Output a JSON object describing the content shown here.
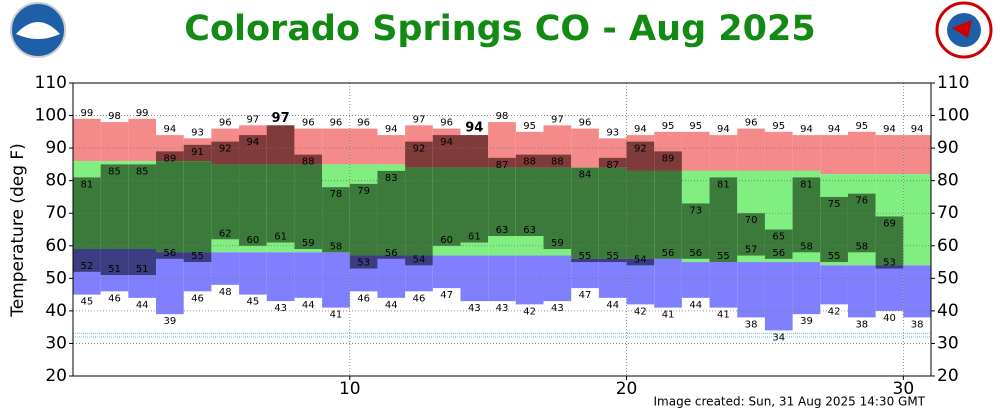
{
  "chart_data": {
    "type": "range",
    "title": "Colorado Springs CO - Aug 2025",
    "y_label": "Temperature (deg F)",
    "footer": "Image created: Sun, 31 Aug 2025 14:30 GMT",
    "x": [
      1,
      2,
      3,
      4,
      5,
      6,
      7,
      8,
      9,
      10,
      11,
      12,
      13,
      14,
      15,
      16,
      17,
      18,
      19,
      20,
      21,
      22,
      23,
      24,
      25,
      26,
      27,
      28,
      29,
      30,
      31
    ],
    "xlim": [
      0,
      31
    ],
    "xticks": [
      10,
      20,
      30
    ],
    "ylim": [
      20,
      110
    ],
    "yticks": [
      20,
      30,
      40,
      50,
      60,
      70,
      80,
      90,
      100,
      110
    ],
    "grid": true,
    "freezing": 32,
    "record_high": [
      99,
      98,
      99,
      94,
      93,
      96,
      97,
      97,
      96,
      96,
      96,
      94,
      97,
      96,
      94,
      98,
      95,
      97,
      96,
      93,
      94,
      95,
      95,
      94,
      96,
      95,
      94,
      94,
      95,
      94,
      94
    ],
    "normal_high": [
      86,
      86,
      86,
      86,
      86,
      85,
      85,
      85,
      85,
      85,
      85,
      85,
      84,
      84,
      84,
      84,
      84,
      84,
      84,
      84,
      83,
      83,
      83,
      83,
      83,
      83,
      83,
      82,
      82,
      82,
      82
    ],
    "normal_low": [
      59,
      59,
      59,
      58,
      58,
      58,
      58,
      58,
      58,
      58,
      57,
      57,
      57,
      57,
      57,
      57,
      57,
      57,
      56,
      56,
      56,
      56,
      55,
      55,
      55,
      55,
      55,
      54,
      54,
      54,
      54
    ],
    "record_low": [
      45,
      46,
      44,
      39,
      46,
      48,
      45,
      43,
      44,
      41,
      46,
      44,
      46,
      47,
      43,
      43,
      42,
      43,
      47,
      44,
      42,
      41,
      44,
      41,
      38,
      34,
      39,
      42,
      38,
      40,
      38
    ],
    "actual_high": [
      81,
      85,
      85,
      89,
      91,
      92,
      94,
      97,
      88,
      78,
      79,
      83,
      92,
      94,
      94,
      87,
      88,
      88,
      84,
      87,
      92,
      89,
      73,
      81,
      70,
      65,
      81,
      75,
      76,
      69,
      null
    ],
    "actual_low": [
      52,
      51,
      51,
      56,
      55,
      62,
      60,
      61,
      59,
      58,
      53,
      56,
      54,
      60,
      61,
      63,
      63,
      59,
      55,
      55,
      54,
      56,
      56,
      55,
      57,
      56,
      58,
      55,
      58,
      53,
      null
    ],
    "colors": {
      "record_high": "#f58a8a",
      "normal": "#80ee80",
      "record_low": "#8080ff",
      "above": "#7f3a3a",
      "within": "#3c7a3c",
      "below": "#3c3c80",
      "title": "#138a13",
      "record_label": "#e00000",
      "freezing": "#40c8e8"
    }
  }
}
